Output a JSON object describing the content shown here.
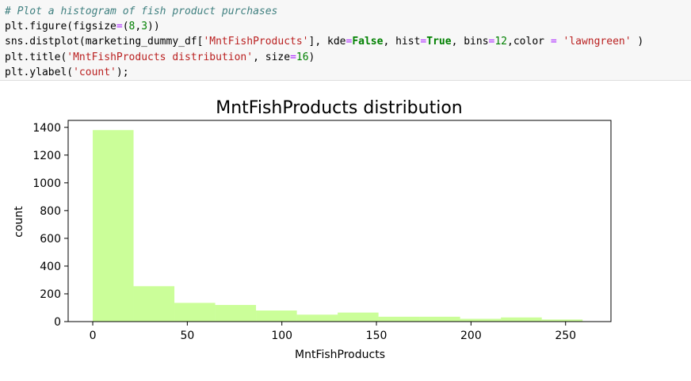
{
  "code_cell": {
    "lines": [
      [
        {
          "t": "# Plot a histogram of fish product purchases",
          "c": "c-comment"
        }
      ],
      [
        {
          "t": "plt.figure(figsize"
        },
        {
          "t": "=",
          "c": "c-op"
        },
        {
          "t": "("
        },
        {
          "t": "8",
          "c": "c-num"
        },
        {
          "t": ","
        },
        {
          "t": "3",
          "c": "c-num"
        },
        {
          "t": "))"
        }
      ],
      [
        {
          "t": "sns.distplot(marketing_dummy_df["
        },
        {
          "t": "'MntFishProducts'",
          "c": "c-str"
        },
        {
          "t": "], kde"
        },
        {
          "t": "=",
          "c": "c-op"
        },
        {
          "t": "False",
          "c": "c-kw"
        },
        {
          "t": ", hist"
        },
        {
          "t": "=",
          "c": "c-op"
        },
        {
          "t": "True",
          "c": "c-kw"
        },
        {
          "t": ", bins"
        },
        {
          "t": "=",
          "c": "c-op"
        },
        {
          "t": "12",
          "c": "c-num"
        },
        {
          "t": ",color "
        },
        {
          "t": "=",
          "c": "c-op"
        },
        {
          "t": " "
        },
        {
          "t": "'lawngreen'",
          "c": "c-str"
        },
        {
          "t": " )"
        }
      ],
      [
        {
          "t": "plt.title("
        },
        {
          "t": "'MntFishProducts distribution'",
          "c": "c-str"
        },
        {
          "t": ", size"
        },
        {
          "t": "=",
          "c": "c-op"
        },
        {
          "t": "16",
          "c": "c-num"
        },
        {
          "t": ")"
        }
      ],
      [
        {
          "t": "plt.ylabel("
        },
        {
          "t": "'count'",
          "c": "c-str"
        },
        {
          "t": ");"
        }
      ]
    ]
  },
  "chart_data": {
    "type": "bar",
    "title": "MntFishProducts distribution",
    "xlabel": "MntFishProducts",
    "ylabel": "count",
    "bin_edges": [
      0,
      21.58,
      43.17,
      64.75,
      86.33,
      107.92,
      129.5,
      151.08,
      172.67,
      194.25,
      215.83,
      237.42,
      259
    ],
    "values": [
      1380,
      255,
      135,
      120,
      80,
      50,
      65,
      35,
      35,
      20,
      30,
      15
    ],
    "xlim": [
      -13,
      274
    ],
    "ylim": [
      0,
      1450
    ],
    "xticks": [
      0,
      50,
      100,
      150,
      200,
      250
    ],
    "yticks": [
      0,
      200,
      400,
      600,
      800,
      1000,
      1200,
      1400
    ],
    "bar_color": "#7CFC00",
    "bar_alpha": 0.4,
    "grid": false,
    "legend": "none"
  }
}
